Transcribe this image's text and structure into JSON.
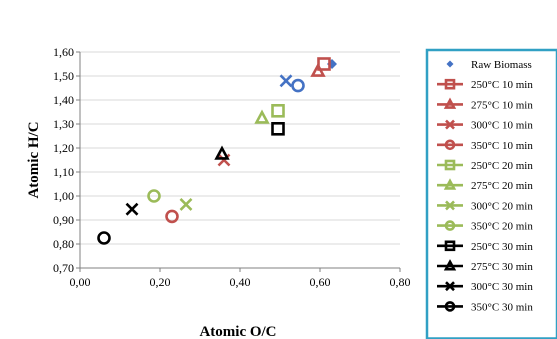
{
  "chart_data": {
    "type": "scatter",
    "title": "",
    "xlabel": "Atomic O/C",
    "ylabel": "Atomic H/C",
    "xlim": [
      0.0,
      0.8
    ],
    "ylim": [
      0.7,
      1.6
    ],
    "x_ticks": [
      "0,00",
      "0,20",
      "0,40",
      "0,60",
      "0,80"
    ],
    "y_ticks": [
      "0,70",
      "0,80",
      "0,90",
      "1,00",
      "1,10",
      "1,20",
      "1,30",
      "1,40",
      "1,50",
      "1,60"
    ],
    "grid": "horizontal",
    "legend_position": "right",
    "series": [
      {
        "name": "Raw Biomass",
        "marker": "diamond",
        "color": "#4472C4",
        "x": [
          0.63
        ],
        "y": [
          1.55
        ]
      },
      {
        "name": "250°C 10 min",
        "marker": "square",
        "color": "#C0504D",
        "x": [
          0.61
        ],
        "y": [
          1.55
        ]
      },
      {
        "name": "275°C 10 min",
        "marker": "triangle",
        "color": "#C0504D",
        "x": [
          0.595
        ],
        "y": [
          1.52
        ]
      },
      {
        "name": "300°C 10 min",
        "marker": "x",
        "color": "#C0504D",
        "x": [
          0.36
        ],
        "y": [
          1.15
        ]
      },
      {
        "name": "350°C 10 min",
        "marker": "circle",
        "color": "#C0504D",
        "x": [
          0.23
        ],
        "y": [
          0.915
        ]
      },
      {
        "name": "250°C 20 min",
        "marker": "square",
        "color": "#9BBB59",
        "x": [
          0.495
        ],
        "y": [
          1.355
        ]
      },
      {
        "name": "275°C 20 min",
        "marker": "triangle",
        "color": "#9BBB59",
        "x": [
          0.455
        ],
        "y": [
          1.325
        ]
      },
      {
        "name": "300°C 20 min",
        "marker": "x",
        "color": "#9BBB59",
        "x": [
          0.265
        ],
        "y": [
          0.965
        ]
      },
      {
        "name": "350°C 20 min",
        "marker": "circle",
        "color": "#9BBB59",
        "x": [
          0.185
        ],
        "y": [
          1.0
        ]
      },
      {
        "name": "250°C 30 min",
        "marker": "square",
        "color": "#000000",
        "x": [
          0.495
        ],
        "y": [
          1.28
        ]
      },
      {
        "name": "275°C 30 min",
        "marker": "triangle",
        "color": "#000000",
        "x": [
          0.355
        ],
        "y": [
          1.175
        ]
      },
      {
        "name": "300°C 30 min",
        "marker": "x",
        "color": "#000000",
        "x": [
          0.13
        ],
        "y": [
          0.945
        ]
      },
      {
        "name": "350°C 30 min",
        "marker": "circle",
        "color": "#000000",
        "x": [
          0.06
        ],
        "y": [
          0.825
        ]
      },
      {
        "name": "",
        "marker": "x",
        "color": "#4472C4",
        "x": [
          0.515
        ],
        "y": [
          1.48
        ]
      },
      {
        "name": "",
        "marker": "circle",
        "color": "#4472C4",
        "x": [
          0.545
        ],
        "y": [
          1.46
        ]
      }
    ]
  },
  "legend_border_color": "#31A0C4"
}
